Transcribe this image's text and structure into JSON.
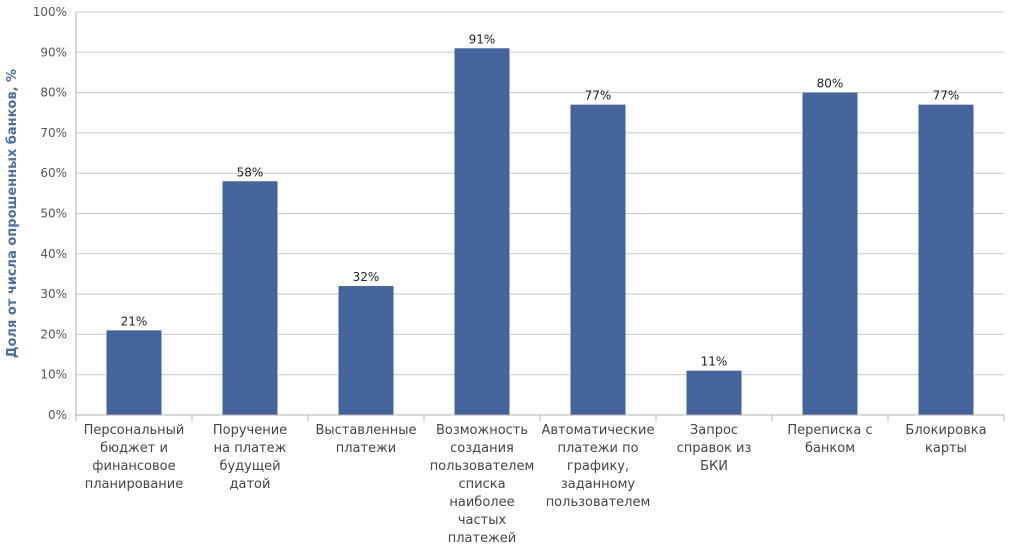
{
  "chart_data": {
    "type": "bar",
    "title": "",
    "xlabel": "",
    "ylabel": "Доля от числа опрошенных банков, %",
    "ylim": [
      0,
      100
    ],
    "yticks": [
      "0%",
      "10%",
      "20%",
      "30%",
      "40%",
      "50%",
      "60%",
      "70%",
      "80%",
      "90%",
      "100%"
    ],
    "grid": true,
    "bar_color": "#46649c",
    "grid_color": "#c8c8c8",
    "categories": [
      [
        "Персональный",
        "бюджет и",
        "финансовое",
        "планирование"
      ],
      [
        "Поручение",
        "на платеж",
        "будущей",
        "датой"
      ],
      [
        "Выставленные",
        "платежи"
      ],
      [
        "Возможность",
        "создания",
        "пользователем",
        "списка",
        "наиболее",
        "частых",
        "платежей"
      ],
      [
        "Автоматические",
        "платежи по",
        "графику,",
        "заданному",
        "пользователем"
      ],
      [
        "Запрос",
        "справок из",
        "БКИ"
      ],
      [
        "Переписка с",
        "банком"
      ],
      [
        "Блокировка",
        "карты"
      ]
    ],
    "values": [
      21,
      58,
      32,
      91,
      77,
      11,
      80,
      77
    ],
    "data_labels": [
      "21%",
      "58%",
      "32%",
      "91%",
      "77%",
      "11%",
      "80%",
      "77%"
    ]
  }
}
